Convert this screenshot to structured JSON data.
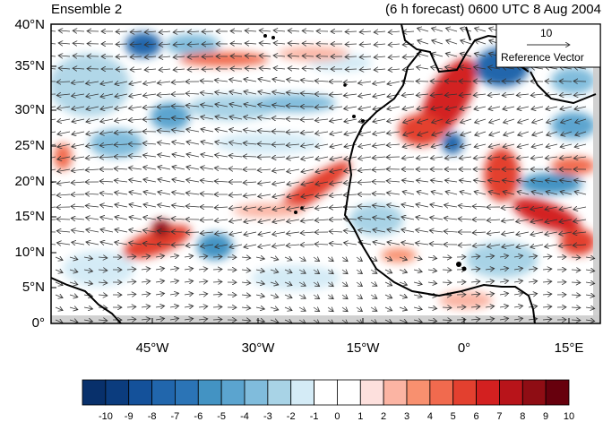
{
  "titles": {
    "left": "Ensemble 2",
    "right": "(6 h forecast) 0600 UTC 8 Aug 2004"
  },
  "map": {
    "lon_range": [
      -62,
      20
    ],
    "lat_range": [
      0,
      40
    ],
    "lat_ticks": [
      "0°",
      "5°N",
      "10°N",
      "15°N",
      "20°N",
      "25°N",
      "30°N",
      "35°N",
      "40°N"
    ],
    "lon_ticks": [
      "45°W",
      "30°W",
      "15°W",
      "0°",
      "15°E"
    ],
    "field": "wind vectors with shaded anomaly field",
    "colors": {
      "coastline": "#000000",
      "vector": "#333333",
      "missing_land": "#cccccc"
    }
  },
  "reference_vector": {
    "magnitude": "10",
    "label": "Reference Vector"
  },
  "colorbar": {
    "labels": [
      "-10",
      "-9",
      "-8",
      "-7",
      "-6",
      "-5",
      "-4",
      "-3",
      "-2",
      "-1",
      "0",
      "1",
      "2",
      "3",
      "4",
      "5",
      "6",
      "7",
      "8",
      "9",
      "10"
    ],
    "colors": [
      "#08306b",
      "#0b3c7e",
      "#14519a",
      "#2166ac",
      "#2b74b6",
      "#4393c3",
      "#5ba4cf",
      "#80bcdc",
      "#a8d3e6",
      "#d4ebf6",
      "#ffffff",
      "#ffffff",
      "#fde0dd",
      "#fbb4a3",
      "#f8906f",
      "#f16a4e",
      "#e3402f",
      "#d32020",
      "#b8141a",
      "#8f0d14",
      "#67000d"
    ]
  },
  "features": {
    "positive_bands": [
      {
        "name": "saharan-band",
        "note": "strong positive stripe along NW Africa"
      },
      {
        "name": "atlantic-core",
        "note": "positive maximum near 45W 13N"
      }
    ]
  }
}
